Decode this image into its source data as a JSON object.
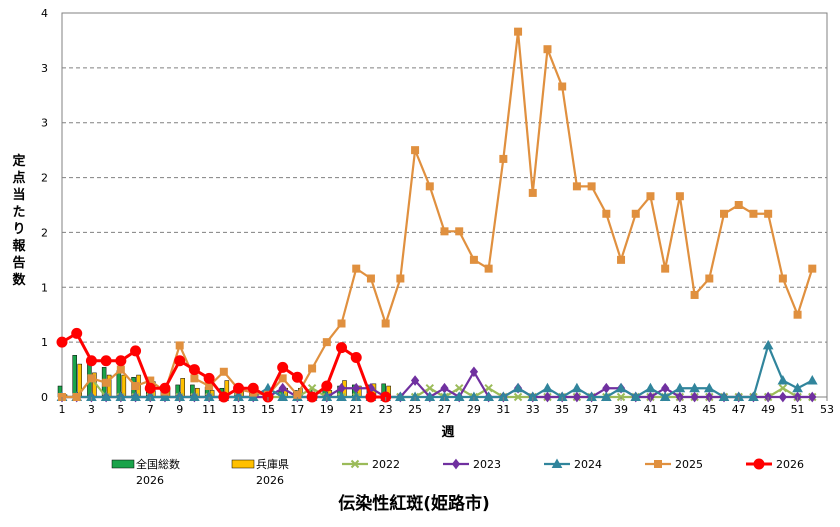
{
  "chart_data": {
    "type": "bar+line",
    "title": "伝染性紅斑(姫路市)",
    "xlabel": "週",
    "ylabel": "定点当たり報告数",
    "y_tick_labels": [
      "0",
      "1",
      "1",
      "2",
      "2",
      "3",
      "3",
      "4"
    ],
    "ylim": [
      0,
      3.5
    ],
    "xlim": [
      1,
      53
    ],
    "x_tick_labels": [
      1,
      3,
      5,
      7,
      9,
      11,
      13,
      15,
      17,
      19,
      21,
      23,
      25,
      27,
      29,
      31,
      33,
      35,
      37,
      39,
      41,
      43,
      45,
      47,
      49,
      51,
      53
    ],
    "grid": "horizontal dashed",
    "legend_position": "bottom",
    "bar_series": [
      {
        "name": "全国総数\n2026",
        "color": "#1aa34a",
        "x": [
          1,
          2,
          3,
          4,
          5,
          6,
          7,
          8,
          9,
          10,
          11,
          12,
          13,
          14,
          15,
          16,
          17,
          18,
          19,
          20,
          21,
          22,
          23
        ],
        "values": [
          0.1,
          0.38,
          0.31,
          0.27,
          0.24,
          0.18,
          0.13,
          0.1,
          0.11,
          0.11,
          0.09,
          0.08,
          0.06,
          0.05,
          0.05,
          0.05,
          0.06,
          0.07,
          0.08,
          0.1,
          0.11,
          0.11,
          0.12
        ]
      },
      {
        "name": "兵庫県\n2026",
        "color": "#ffc000",
        "x": [
          1,
          2,
          3,
          4,
          5,
          6,
          7,
          8,
          9,
          10,
          11,
          12,
          13,
          14,
          15,
          16,
          17,
          18,
          19,
          20,
          21,
          22,
          23
        ],
        "values": [
          0.02,
          0.3,
          0.22,
          0.2,
          0.2,
          0.2,
          0.14,
          0.08,
          0.17,
          0.08,
          0.06,
          0.15,
          0.07,
          0.03,
          0.02,
          0.08,
          0.08,
          0.03,
          0.06,
          0.15,
          0.1,
          0.12,
          0.1
        ]
      }
    ],
    "line_series": [
      {
        "name": "2022",
        "color": "#9bbb59",
        "marker": "x",
        "x": [
          1,
          2,
          3,
          4,
          5,
          6,
          7,
          8,
          9,
          10,
          11,
          12,
          13,
          14,
          15,
          16,
          17,
          18,
          19,
          20,
          21,
          22,
          23,
          24,
          25,
          26,
          27,
          28,
          29,
          30,
          31,
          32,
          33,
          34,
          35,
          36,
          37,
          38,
          39,
          40,
          41,
          42,
          43,
          44,
          45,
          46,
          47,
          48,
          49,
          50,
          51,
          52
        ],
        "values": [
          0,
          0,
          0.17,
          0,
          0,
          0,
          0,
          0,
          0,
          0,
          0,
          0,
          0,
          0,
          0,
          0,
          0,
          0.08,
          0,
          0,
          0,
          0,
          0,
          0,
          0,
          0.08,
          0,
          0.08,
          0,
          0.08,
          0,
          0,
          0,
          0,
          0,
          0,
          0,
          0,
          0,
          0,
          0,
          0,
          0,
          0,
          0,
          0,
          0,
          0,
          0,
          0.08,
          0,
          0
        ]
      },
      {
        "name": "2023",
        "color": "#7030a0",
        "marker": "diamond",
        "x": [
          1,
          2,
          3,
          4,
          5,
          6,
          7,
          8,
          9,
          10,
          11,
          12,
          13,
          14,
          15,
          16,
          17,
          18,
          19,
          20,
          21,
          22,
          23,
          24,
          25,
          26,
          27,
          28,
          29,
          30,
          31,
          32,
          33,
          34,
          35,
          36,
          37,
          38,
          39,
          40,
          41,
          42,
          43,
          44,
          45,
          46,
          47,
          48,
          49,
          50,
          51,
          52
        ],
        "values": [
          0,
          0,
          0,
          0,
          0,
          0,
          0,
          0,
          0,
          0,
          0,
          0,
          0,
          0,
          0,
          0.08,
          0,
          0,
          0,
          0.08,
          0.08,
          0.08,
          0,
          0,
          0.15,
          0,
          0.08,
          0,
          0.23,
          0,
          0,
          0.08,
          0,
          0,
          0,
          0,
          0,
          0.08,
          0.08,
          0,
          0,
          0.08,
          0,
          0,
          0,
          0,
          0,
          0,
          0,
          0,
          0,
          0
        ]
      },
      {
        "name": "2024",
        "color": "#31859c",
        "marker": "triangle",
        "x": [
          1,
          2,
          3,
          4,
          5,
          6,
          7,
          8,
          9,
          10,
          11,
          12,
          13,
          14,
          15,
          16,
          17,
          18,
          19,
          20,
          21,
          22,
          23,
          24,
          25,
          26,
          27,
          28,
          29,
          30,
          31,
          32,
          33,
          34,
          35,
          36,
          37,
          38,
          39,
          40,
          41,
          42,
          43,
          44,
          45,
          46,
          47,
          48,
          49,
          50,
          51,
          52
        ],
        "values": [
          0,
          0,
          0,
          0,
          0,
          0,
          0,
          0,
          0,
          0,
          0,
          0,
          0,
          0,
          0.08,
          0,
          0,
          0,
          0,
          0,
          0,
          0,
          0,
          0,
          0,
          0,
          0,
          0,
          0,
          0,
          0,
          0.08,
          0,
          0.08,
          0,
          0.08,
          0,
          0,
          0.08,
          0,
          0.08,
          0,
          0.08,
          0.08,
          0.08,
          0,
          0,
          0,
          0.47,
          0.15,
          0.08,
          0.15
        ]
      },
      {
        "name": "2025",
        "color": "#e0903f",
        "marker": "square",
        "x": [
          1,
          2,
          3,
          4,
          5,
          6,
          7,
          8,
          9,
          10,
          11,
          12,
          13,
          14,
          15,
          16,
          17,
          18,
          19,
          20,
          21,
          22,
          23,
          24,
          25,
          26,
          27,
          28,
          29,
          30,
          31,
          32,
          33,
          34,
          35,
          36,
          37,
          38,
          39,
          40,
          41,
          42,
          43,
          44,
          45,
          46,
          47,
          48,
          49,
          50,
          51,
          52
        ],
        "values": [
          0,
          0,
          0.17,
          0.13,
          0.25,
          0.1,
          0.15,
          0.05,
          0.47,
          0.17,
          0.1,
          0.23,
          0.07,
          0.04,
          0.02,
          0.17,
          0.02,
          0.26,
          0.5,
          0.67,
          1.17,
          1.08,
          0.67,
          1.08,
          2.25,
          1.92,
          1.51,
          1.51,
          1.25,
          1.17,
          2.17,
          3.33,
          1.86,
          3.17,
          2.83,
          1.92,
          1.92,
          1.67,
          1.25,
          1.67,
          1.83,
          1.17,
          1.83,
          0.93,
          1.08,
          1.67,
          1.75,
          1.67,
          1.67,
          1.08,
          0.75,
          1.17
        ]
      },
      {
        "name": "2026",
        "color": "#ff0000",
        "marker": "circle",
        "x": [
          1,
          2,
          3,
          4,
          5,
          6,
          7,
          8,
          9,
          10,
          11,
          12,
          13,
          14,
          15,
          16,
          17,
          18,
          19,
          20,
          21,
          22,
          23
        ],
        "values": [
          0.5,
          0.58,
          0.33,
          0.33,
          0.33,
          0.42,
          0.08,
          0.08,
          0.33,
          0.25,
          0.17,
          0.0,
          0.08,
          0.08,
          0.0,
          0.27,
          0.18,
          0.0,
          0.1,
          0.45,
          0.36,
          0.0,
          0.0
        ]
      }
    ]
  }
}
